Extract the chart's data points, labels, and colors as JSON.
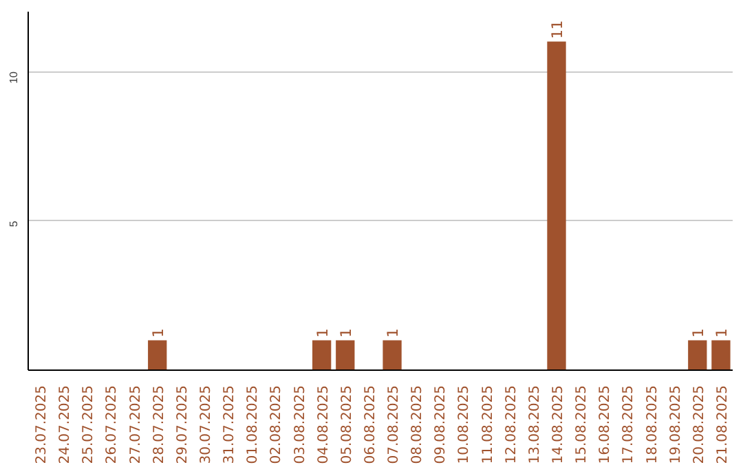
{
  "chart_data": {
    "type": "bar",
    "categories": [
      "23.07.2025",
      "24.07.2025",
      "25.07.2025",
      "26.07.2025",
      "27.07.2025",
      "28.07.2025",
      "29.07.2025",
      "30.07.2025",
      "31.07.2025",
      "01.08.2025",
      "02.08.2025",
      "03.08.2025",
      "04.08.2025",
      "05.08.2025",
      "06.08.2025",
      "07.08.2025",
      "08.08.2025",
      "09.08.2025",
      "10.08.2025",
      "11.08.2025",
      "12.08.2025",
      "13.08.2025",
      "14.08.2025",
      "15.08.2025",
      "16.08.2025",
      "17.08.2025",
      "18.08.2025",
      "19.08.2025",
      "20.08.2025",
      "21.08.2025"
    ],
    "values": [
      0,
      0,
      0,
      0,
      0,
      1,
      0,
      0,
      0,
      0,
      0,
      0,
      1,
      1,
      0,
      1,
      0,
      0,
      0,
      0,
      0,
      0,
      11,
      0,
      0,
      0,
      0,
      0,
      1,
      1
    ],
    "value_labels": [
      null,
      null,
      null,
      null,
      null,
      "1",
      null,
      null,
      null,
      null,
      null,
      null,
      "1",
      "1",
      null,
      "1",
      null,
      null,
      null,
      null,
      null,
      null,
      "11",
      null,
      null,
      null,
      null,
      null,
      "1",
      "1"
    ],
    "color": "#a0522d",
    "ylim": [
      0,
      12
    ],
    "yticks": [
      5,
      10
    ],
    "grid": "y"
  }
}
